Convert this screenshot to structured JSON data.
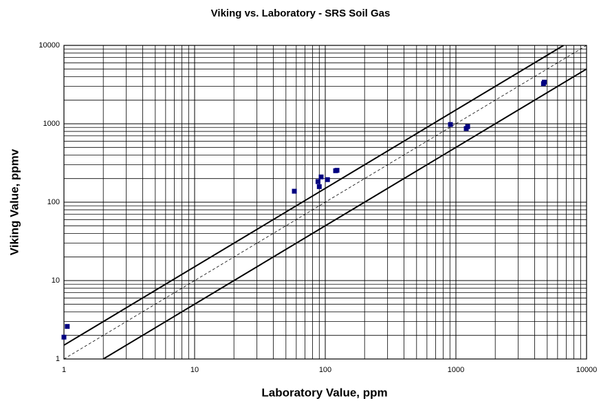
{
  "chart_data": {
    "type": "scatter",
    "title": "Viking vs. Laboratory - SRS Soil Gas",
    "xlabel": "Laboratory Value, ppm",
    "ylabel": "Viking Value, ppmv",
    "x": [
      1.0,
      1.06,
      58,
      88,
      90,
      93,
      104,
      120,
      123,
      908,
      1200,
      1230,
      4680,
      4750
    ],
    "values": [
      1.9,
      2.6,
      138,
      183,
      158,
      210,
      194,
      252,
      255,
      980,
      870,
      920,
      3250,
      3400
    ],
    "color": "#000080",
    "xlim": [
      1,
      10000
    ],
    "ylim": [
      1,
      10000
    ],
    "xticks": [
      1,
      10,
      100,
      1000,
      10000
    ],
    "yticks": [
      1,
      10,
      100,
      1000,
      10000
    ],
    "log_x": true,
    "log_y": true,
    "grid": true,
    "minor_grid": true,
    "lines": [
      {
        "x": [
          1,
          6667
        ],
        "values": [
          1.5,
          10000
        ],
        "dashed": false,
        "color": "#000000"
      },
      {
        "x": [
          2,
          10000
        ],
        "values": [
          1,
          5000
        ],
        "dashed": false,
        "color": "#000000"
      },
      {
        "x": [
          1,
          10000
        ],
        "values": [
          1,
          10000
        ],
        "dashed": true,
        "color": "#000000"
      }
    ]
  }
}
